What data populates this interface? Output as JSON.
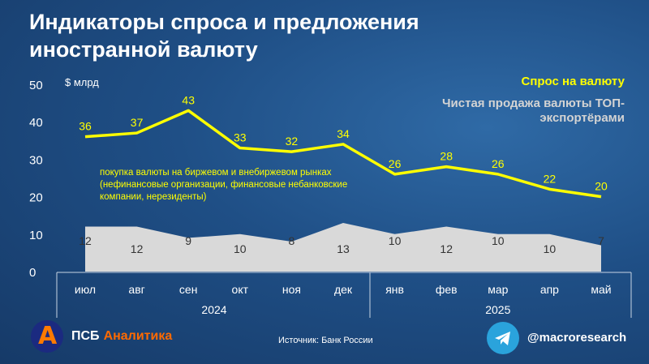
{
  "header": {
    "title_line1": "Индикаторы спроса и предложения",
    "title_line2": "иностранной валюту"
  },
  "legend": {
    "demand": "Спрос на валюту",
    "supply": "Чистая продажа валюты ТОП-экспортёрами"
  },
  "note": "покупка валюты на биржевом и внебиржевом рынках (нефинансовые организации, финансовые небанковские компании, нерезиденты)",
  "footer": {
    "source": "Источник: Банк России",
    "brand_prefix": "ПСБ",
    "brand_suffix": "Аналитика",
    "channel": "@macroresearch"
  },
  "colors": {
    "demand_line": "#ffff00",
    "supply_area": "#d9d9d9",
    "background": "#1f4f86",
    "brand_orange": "#ff6a00",
    "telegram": "#2aa3dc"
  },
  "icons": [
    "psb-analytics-logo-icon",
    "telegram-icon"
  ],
  "chart_data": {
    "type": "line",
    "unit_label": "$ млрд",
    "categories": [
      "июл",
      "авг",
      "сен",
      "окт",
      "ноя",
      "дек",
      "янв",
      "фев",
      "мар",
      "апр",
      "май"
    ],
    "year_groups": [
      {
        "label": "2024",
        "from": 0,
        "to": 5
      },
      {
        "label": "2025",
        "from": 6,
        "to": 10
      }
    ],
    "ylim": [
      0,
      50
    ],
    "yticks": [
      0,
      10,
      20,
      30,
      40,
      50
    ],
    "series": [
      {
        "name": "Спрос на валюту",
        "type": "line",
        "values": [
          36,
          37,
          43,
          33,
          32,
          34,
          26,
          28,
          26,
          22,
          20
        ]
      },
      {
        "name": "Чистая продажа валюты ТОП-экспортёрами",
        "type": "area",
        "values": [
          12,
          12,
          9,
          10,
          8,
          13,
          10,
          12,
          10,
          10,
          7
        ]
      }
    ]
  }
}
